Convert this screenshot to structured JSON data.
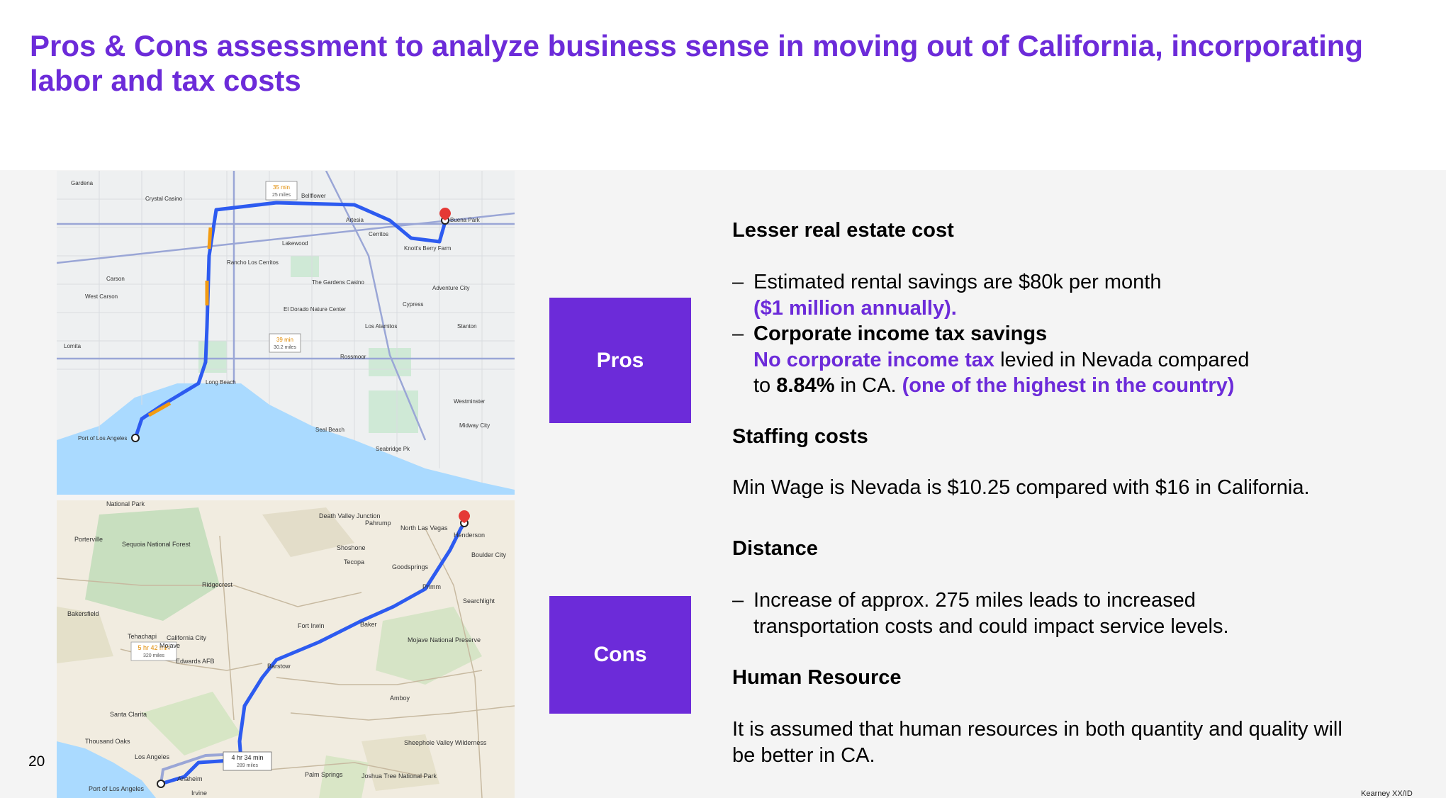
{
  "title": "Pros & Cons assessment to analyze business sense in moving out of California, incorporating labor and tax costs",
  "pros_label": "Pros",
  "cons_label": "Cons",
  "sections": {
    "real_estate": {
      "heading": "Lesser real estate cost",
      "bullet1_text": "Estimated rental savings are $80k per month",
      "bullet1_highlight": "($1 million annually).",
      "bullet2_heading": "Corporate income tax savings",
      "bullet2_highlight": "No corporate income tax",
      "bullet2_text": " levied in Nevada compared",
      "bullet2_text2": "to ",
      "bullet2_rate": "8.84%",
      "bullet2_text3": " in CA. ",
      "bullet2_highlight2": "(one of the highest in the country)"
    },
    "staffing": {
      "heading": "Staffing costs",
      "text": "Min Wage is Nevada is $10.25 compared with $16 in California."
    },
    "distance": {
      "heading": "Distance",
      "bullet1_text": "Increase of approx. 275 miles leads to increased transportation costs and could impact service levels."
    },
    "human_resource": {
      "heading": "Human Resource",
      "text": "It is assumed that human resources in both quantity and quality will be better in CA."
    }
  },
  "bullet_dash": "–",
  "page_number": "20",
  "footer": "Kearney XX/ID",
  "map_top": {
    "labels": [
      "Gardena",
      "Crystal Casino",
      "Bellflower",
      "Buena Park",
      "Carson",
      "West Carson",
      "Lakewood",
      "Cerritos",
      "Artesia",
      "Knott's Berry Farm",
      "Rancho Los Cerritos",
      "The Gardens Casino",
      "Cypress",
      "Los Alamitos",
      "Stanton",
      "Long Beach",
      "Rossmoor",
      "Port of Los Angeles",
      "Westminster",
      "Midway City",
      "Seal Beach",
      "Seabridge Pk",
      "Lomita",
      "Adventure City",
      "El Dorado Nature Center"
    ],
    "route1_time": "35 min",
    "route1_dist": "25 miles",
    "route2_time": "39 min",
    "route2_dist": "30.2 miles"
  },
  "map_bottom": {
    "labels": [
      "National Park",
      "Death Valley Junction",
      "Pahrump",
      "North Las Vegas",
      "Henderson",
      "Boulder City",
      "Sequoia National Forest",
      "Porterville",
      "Bakersfield",
      "Tehachapi",
      "California City",
      "Mojave",
      "Edwards AFB",
      "Barstow",
      "Fort Irwin",
      "Baker",
      "Mojave National Preserve",
      "Santa Clarita",
      "Los Angeles",
      "Anaheim",
      "Irvine",
      "Port of Los Angeles",
      "Goodsprings",
      "Searchlight",
      "Palm Springs",
      "Joshua Tree National Park",
      "Sheephole Valley Wilderness",
      "Amboy",
      "Ridgecrest",
      "Shoshone",
      "Tecopa",
      "Thousand Oaks",
      "Primm"
    ],
    "route1_time": "5 hr 42 min",
    "route1_dist": "320 miles",
    "route2_time": "4 hr 34 min",
    "route2_dist": "289 miles"
  }
}
